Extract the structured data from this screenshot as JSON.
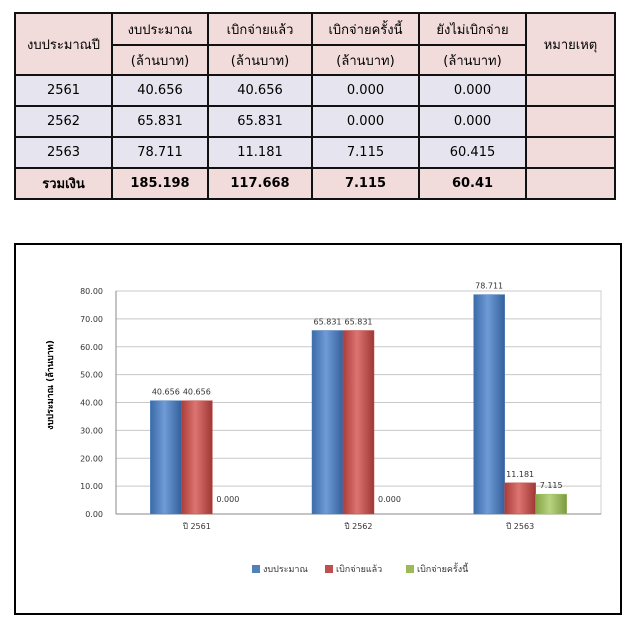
{
  "table": {
    "col_year": "งบประมาณปี",
    "col_budget": "งบประมาณ",
    "col_disbursed": "เบิกจ่ายแล้ว",
    "col_this_time": "เบิกจ่ายครั้งนี้",
    "col_not_disbursed": "ยังไม่เบิกจ่าย",
    "col_note": "หมายเหตุ",
    "unit": "(ล้านบาท)",
    "rows": [
      {
        "year": "2561",
        "budget": "40.656",
        "disbursed": "40.656",
        "this_time": "0.000",
        "not_disbursed": "0.000",
        "note": ""
      },
      {
        "year": "2562",
        "budget": "65.831",
        "disbursed": "65.831",
        "this_time": "0.000",
        "not_disbursed": "0.000",
        "note": ""
      },
      {
        "year": "2563",
        "budget": "78.711",
        "disbursed": "11.181",
        "this_time": "7.115",
        "not_disbursed": "60.415",
        "note": ""
      }
    ],
    "total": {
      "label": "รวมเงิน",
      "budget": "185.198",
      "disbursed": "117.668",
      "this_time": "7.115",
      "not_disbursed": "60.41",
      "note": ""
    }
  },
  "chart_data": {
    "type": "bar",
    "title": "",
    "xlabel": "",
    "ylabel": "งบประมาณ (ล้านบาท)",
    "ylim": [
      0,
      80
    ],
    "y_ticks": [
      "0.00",
      "10.00",
      "20.00",
      "30.00",
      "40.00",
      "50.00",
      "60.00",
      "70.00",
      "80.00"
    ],
    "grid": true,
    "legend_position": "bottom",
    "categories": [
      "ปี 2561",
      "ปี 2562",
      "ปี 2563"
    ],
    "series": [
      {
        "name": "งบประมาณ",
        "color": "#4f81bd",
        "values": [
          40.656,
          65.831,
          78.711
        ],
        "labels": [
          "40.656",
          "65.831",
          "78.711"
        ]
      },
      {
        "name": "เบิกจ่ายแล้ว",
        "color": "#c0504d",
        "values": [
          40.656,
          65.831,
          11.181
        ],
        "labels": [
          "40.656",
          "65.831",
          "11.181"
        ]
      },
      {
        "name": "เบิกจ่ายครั้งนี้",
        "color": "#9bbb59",
        "values": [
          0,
          0,
          7.115
        ],
        "labels": [
          "0.000",
          "0.000",
          "7.115"
        ]
      }
    ]
  }
}
